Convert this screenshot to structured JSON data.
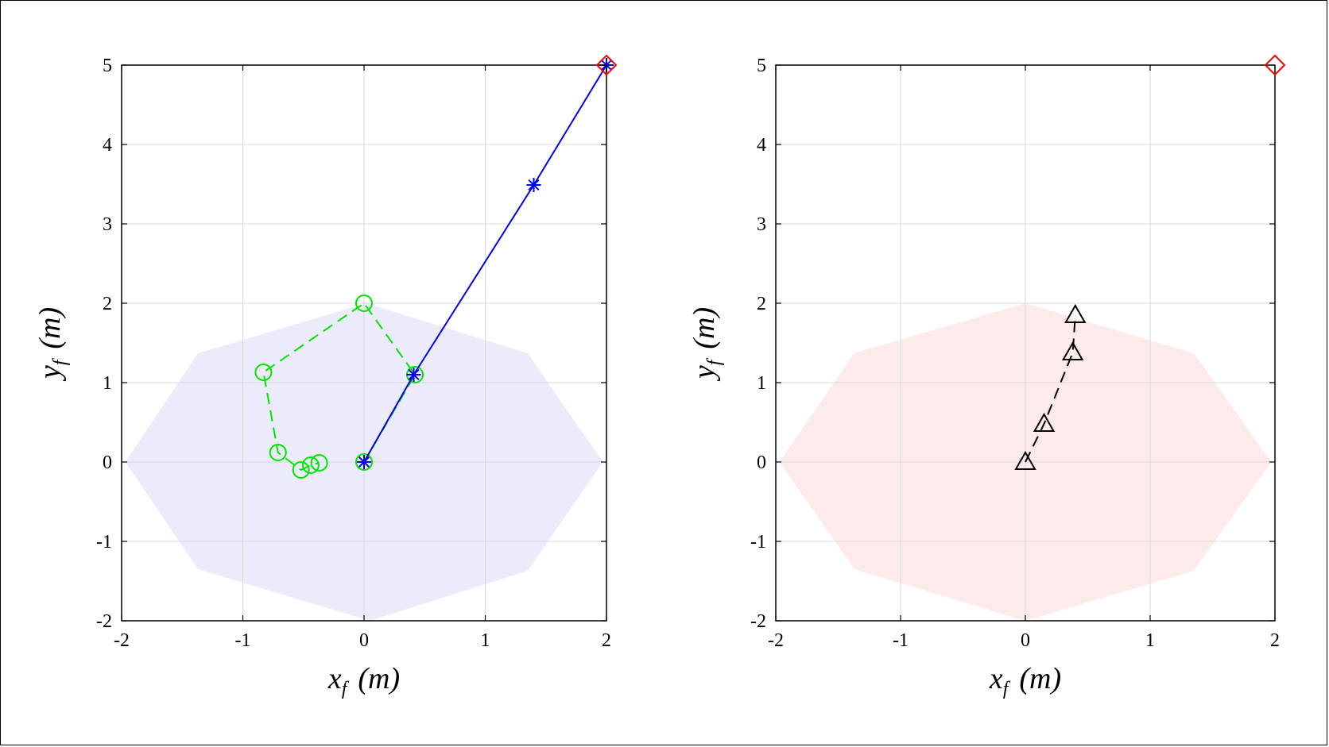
{
  "chart_data": [
    {
      "type": "scatter",
      "title": "",
      "xlabel": "x_f (m)",
      "ylabel": "y_f (m)",
      "xlabel_parts": {
        "main": "x",
        "sub": "f",
        "unit": "(m)"
      },
      "ylabel_parts": {
        "main": "y",
        "sub": "f",
        "unit": "(m)"
      },
      "xlim": [
        -2,
        2
      ],
      "ylim": [
        -2,
        5
      ],
      "xticks": [
        "-2",
        "-1",
        "0",
        "1",
        "2"
      ],
      "yticks": [
        "-2",
        "-1",
        "0",
        "1",
        "2",
        "3",
        "4",
        "5"
      ],
      "grid": true,
      "region": {
        "fill": "#ebebfb",
        "x": [
          -1.97,
          -1.37,
          0.02,
          1.35,
          1.97,
          1.35,
          0.05,
          -1.37,
          -1.97
        ],
        "y": [
          0.0,
          1.37,
          2.0,
          1.37,
          0.0,
          -1.37,
          -2.0,
          -1.35,
          0.0
        ]
      },
      "series": [
        {
          "color": "#00e600",
          "line": "dashed",
          "marker": "circle",
          "x": [
            0.0,
            0.42,
            0.0,
            -0.83,
            -0.71,
            -0.52,
            -0.44,
            -0.37
          ],
          "y": [
            0.0,
            1.1,
            2.0,
            1.13,
            0.12,
            -0.1,
            -0.04,
            -0.01
          ]
        },
        {
          "color": "#0000e6",
          "line": "solid",
          "marker": "asterisk",
          "x": [
            0.0,
            0.41,
            1.4,
            2.0
          ],
          "y": [
            0.0,
            1.1,
            3.49,
            5.0
          ]
        }
      ],
      "target": {
        "color": "#ff0000",
        "marker": "diamond",
        "x": 2.0,
        "y": 5.0
      }
    },
    {
      "type": "scatter",
      "title": "",
      "xlabel": "x_f (m)",
      "ylabel": "y_f (m)",
      "xlabel_parts": {
        "main": "x",
        "sub": "f",
        "unit": "(m)"
      },
      "ylabel_parts": {
        "main": "y",
        "sub": "f",
        "unit": "(m)"
      },
      "xlim": [
        -2,
        2
      ],
      "ylim": [
        -2,
        5
      ],
      "xticks": [
        "-2",
        "-1",
        "0",
        "1",
        "2"
      ],
      "yticks": [
        "-2",
        "-1",
        "0",
        "1",
        "2",
        "3",
        "4",
        "5"
      ],
      "grid": true,
      "region": {
        "fill": "#fdeaea",
        "x": [
          -1.97,
          -1.37,
          0.0,
          1.35,
          1.97,
          1.35,
          0.0,
          -1.37,
          -1.97
        ],
        "y": [
          0.0,
          1.37,
          2.0,
          1.37,
          0.0,
          -1.37,
          -2.0,
          -1.35,
          0.0
        ]
      },
      "series": [
        {
          "color": "#000000",
          "line": "dashed",
          "marker": "triangle",
          "x": [
            0.0,
            0.15,
            0.38,
            0.4
          ],
          "y": [
            0.0,
            0.48,
            1.38,
            1.85
          ]
        }
      ],
      "target": {
        "color": "#ff0000",
        "marker": "diamond",
        "x": 2.0,
        "y": 5.0
      }
    }
  ]
}
